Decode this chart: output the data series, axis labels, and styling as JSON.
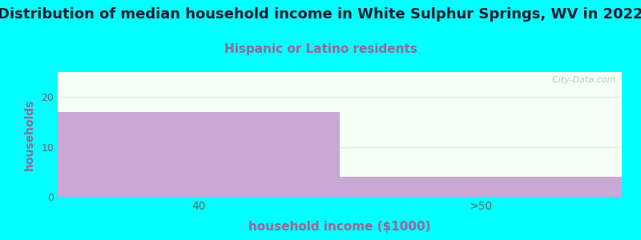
{
  "title": "Distribution of median household income in White Sulphur Springs, WV in 2022",
  "subtitle": "Hispanic or Latino residents",
  "categories": [
    "40",
    ">50"
  ],
  "values": [
    17,
    4
  ],
  "bar_color": "#c9a8d4",
  "background_color": "#00ffff",
  "plot_bg_top": "#f5fff5",
  "plot_bg_bottom": "#e8f5e8",
  "xlabel": "household income ($1000)",
  "ylabel": "households",
  "ylim": [
    0,
    25
  ],
  "yticks": [
    0,
    10,
    20
  ],
  "title_fontsize": 13,
  "subtitle_fontsize": 11,
  "subtitle_color": "#996699",
  "axis_label_color": "#996699",
  "tick_color": "#666666",
  "watermark": "  City-Data.com"
}
